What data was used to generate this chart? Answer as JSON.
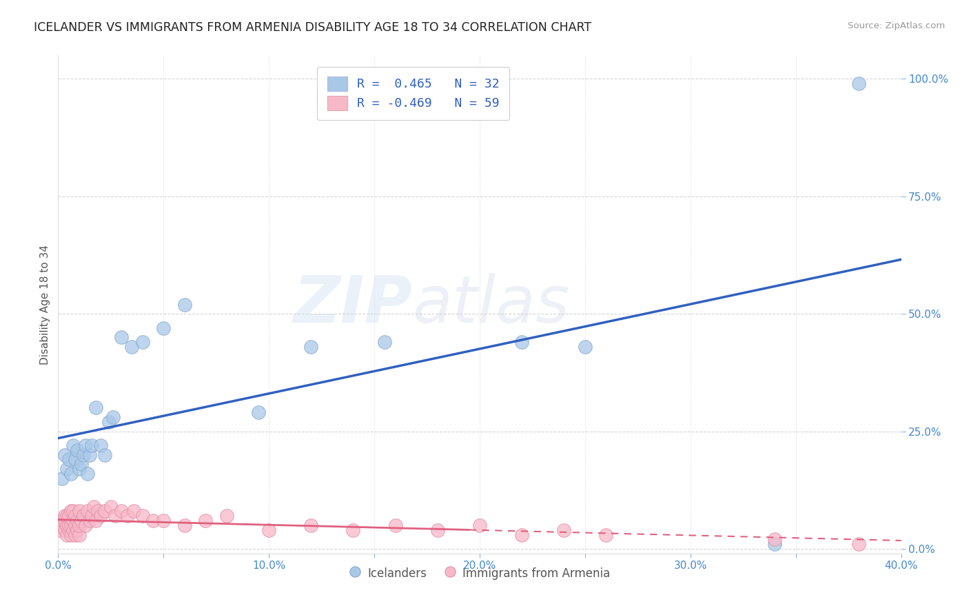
{
  "title": "ICELANDER VS IMMIGRANTS FROM ARMENIA DISABILITY AGE 18 TO 34 CORRELATION CHART",
  "source": "Source: ZipAtlas.com",
  "ylabel": "Disability Age 18 to 34",
  "xlim": [
    0.0,
    0.4
  ],
  "ylim": [
    -0.01,
    1.05
  ],
  "xticks": [
    0.0,
    0.05,
    0.1,
    0.15,
    0.2,
    0.25,
    0.3,
    0.35,
    0.4
  ],
  "xtick_labels": [
    "0.0%",
    "",
    "10.0%",
    "",
    "20.0%",
    "",
    "30.0%",
    "",
    "40.0%"
  ],
  "yticks_right": [
    0.0,
    0.25,
    0.5,
    0.75,
    1.0
  ],
  "ytick_labels_right": [
    "0.0%",
    "25.0%",
    "50.0%",
    "75.0%",
    "100.0%"
  ],
  "blue_color": "#a8c8e8",
  "pink_color": "#f8b8c8",
  "blue_line_color": "#3060c0",
  "pink_line_color": "#e06080",
  "legend_line1": "R =  0.465   N = 32",
  "legend_line2": "R = -0.469   N = 59",
  "legend_label_blue": "Icelanders",
  "legend_label_pink": "Immigrants from Armenia",
  "watermark": "ZIPatlas",
  "blue_scatter_x": [
    0.002,
    0.003,
    0.004,
    0.005,
    0.006,
    0.007,
    0.008,
    0.009,
    0.01,
    0.011,
    0.012,
    0.013,
    0.014,
    0.015,
    0.016,
    0.018,
    0.02,
    0.022,
    0.024,
    0.026,
    0.03,
    0.035,
    0.04,
    0.05,
    0.06,
    0.095,
    0.12,
    0.155,
    0.22,
    0.25,
    0.34,
    0.38
  ],
  "blue_scatter_y": [
    0.15,
    0.2,
    0.17,
    0.19,
    0.16,
    0.22,
    0.19,
    0.21,
    0.17,
    0.18,
    0.2,
    0.22,
    0.16,
    0.2,
    0.22,
    0.3,
    0.22,
    0.2,
    0.27,
    0.28,
    0.45,
    0.43,
    0.44,
    0.47,
    0.52,
    0.29,
    0.43,
    0.44,
    0.44,
    0.43,
    0.01,
    0.99
  ],
  "pink_scatter_x": [
    0.001,
    0.002,
    0.002,
    0.003,
    0.003,
    0.003,
    0.004,
    0.004,
    0.004,
    0.005,
    0.005,
    0.005,
    0.006,
    0.006,
    0.006,
    0.007,
    0.007,
    0.007,
    0.008,
    0.008,
    0.008,
    0.009,
    0.009,
    0.01,
    0.01,
    0.01,
    0.011,
    0.012,
    0.013,
    0.014,
    0.015,
    0.016,
    0.017,
    0.018,
    0.019,
    0.02,
    0.022,
    0.025,
    0.027,
    0.03,
    0.033,
    0.036,
    0.04,
    0.045,
    0.05,
    0.06,
    0.07,
    0.08,
    0.1,
    0.12,
    0.14,
    0.16,
    0.18,
    0.2,
    0.22,
    0.24,
    0.26,
    0.34,
    0.38
  ],
  "pink_scatter_y": [
    0.04,
    0.05,
    0.06,
    0.04,
    0.06,
    0.07,
    0.03,
    0.05,
    0.07,
    0.04,
    0.05,
    0.07,
    0.03,
    0.05,
    0.08,
    0.04,
    0.06,
    0.08,
    0.03,
    0.05,
    0.07,
    0.04,
    0.06,
    0.03,
    0.05,
    0.08,
    0.06,
    0.07,
    0.05,
    0.08,
    0.06,
    0.07,
    0.09,
    0.06,
    0.08,
    0.07,
    0.08,
    0.09,
    0.07,
    0.08,
    0.07,
    0.08,
    0.07,
    0.06,
    0.06,
    0.05,
    0.06,
    0.07,
    0.04,
    0.05,
    0.04,
    0.05,
    0.04,
    0.05,
    0.03,
    0.04,
    0.03,
    0.02,
    0.01
  ],
  "background_color": "#ffffff",
  "grid_color": "#cccccc",
  "title_color": "#222222",
  "tick_color": "#4488cc"
}
